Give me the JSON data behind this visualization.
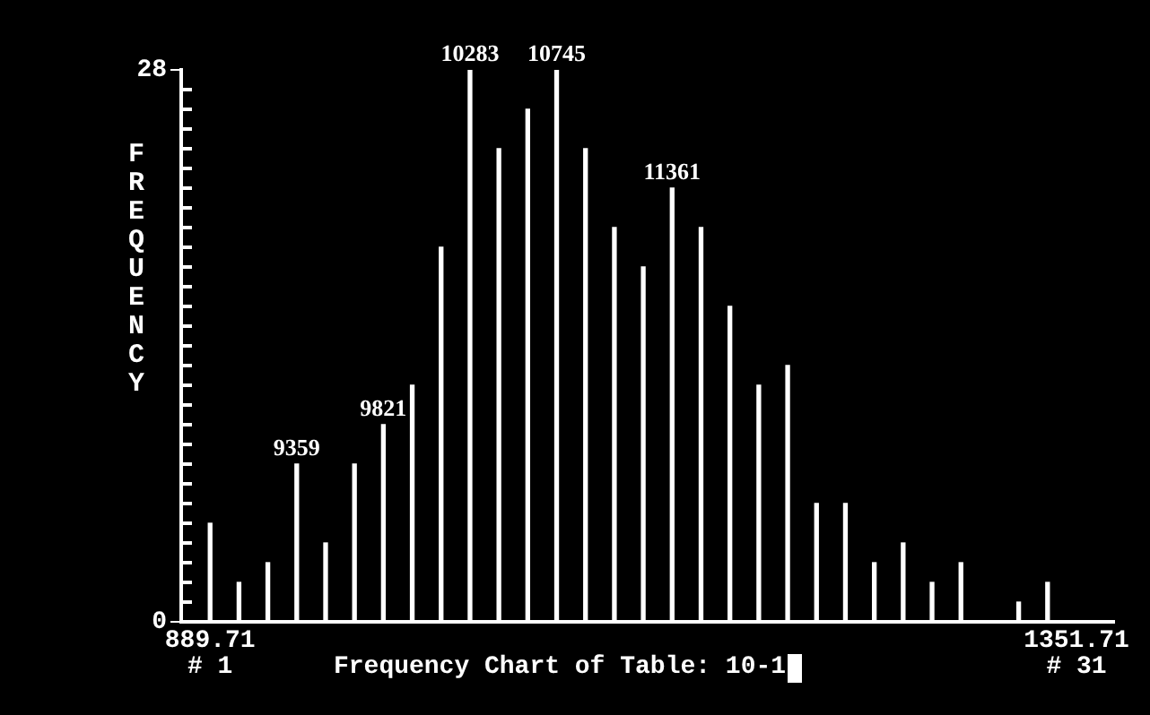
{
  "chart_data": {
    "type": "bar",
    "title": "Frequency Chart of Table: 10-1",
    "ylabel": "FREQUENCY",
    "x": [
      889.71,
      905.11,
      920.51,
      935.91,
      951.31,
      966.71,
      982.11,
      997.51,
      1012.91,
      1028.31,
      1043.71,
      1059.11,
      1074.51,
      1089.91,
      1105.31,
      1120.71,
      1136.11,
      1151.51,
      1166.91,
      1182.31,
      1197.71,
      1213.11,
      1228.51,
      1243.91,
      1259.31,
      1274.71,
      1290.11,
      1305.51,
      1320.91,
      1336.31,
      1351.71
    ],
    "values": [
      5,
      2,
      3,
      8,
      4,
      8,
      10,
      12,
      19,
      28,
      24,
      26,
      28,
      24,
      20,
      18,
      22,
      20,
      16,
      12,
      13,
      6,
      6,
      3,
      4,
      2,
      3,
      0,
      1,
      2,
      0
    ],
    "color": "#ffffff",
    "xlim": [
      874.3,
      1371.8
    ],
    "xticks": [
      889.71,
      1351.71
    ],
    "ylim": [
      0,
      28
    ],
    "yticks": [
      0,
      {
        "value": 1,
        "label": null
      },
      {
        "value": 2,
        "label": null
      },
      {
        "value": 3,
        "label": null
      },
      {
        "value": 4,
        "label": null
      },
      {
        "value": 5,
        "label": null
      },
      {
        "value": 6,
        "label": null
      },
      {
        "value": 7,
        "label": null
      },
      {
        "value": 8,
        "label": null
      },
      {
        "value": 9,
        "label": null
      },
      {
        "value": 10,
        "label": null
      },
      {
        "value": 11,
        "label": null
      },
      {
        "value": 12,
        "label": null
      },
      {
        "value": 13,
        "label": null
      },
      {
        "value": 14,
        "label": null
      },
      {
        "value": 15,
        "label": null
      },
      {
        "value": 16,
        "label": null
      },
      {
        "value": 17,
        "label": null
      },
      {
        "value": 18,
        "label": null
      },
      {
        "value": 19,
        "label": null
      },
      {
        "value": 20,
        "label": null
      },
      {
        "value": 21,
        "label": null
      },
      {
        "value": 22,
        "label": null
      },
      {
        "value": 23,
        "label": null
      },
      {
        "value": 24,
        "label": null
      },
      {
        "value": 25,
        "label": null
      },
      {
        "value": 26,
        "label": null
      },
      {
        "value": 27,
        "label": null
      },
      28
    ],
    "annotations": [
      {
        "text": "9359",
        "x": 935.91,
        "y": 8
      },
      {
        "text": "9821",
        "x": 982.11,
        "y": 10
      },
      {
        "text": "10283",
        "x": 1028.31,
        "y": 28
      },
      {
        "text": "10745",
        "x": 1074.51,
        "y": 28
      },
      {
        "text": "11361",
        "x": 1136.11,
        "y": 22
      },
      "# 1",
      "# 31"
    ],
    "grid": false,
    "legend": false
  }
}
